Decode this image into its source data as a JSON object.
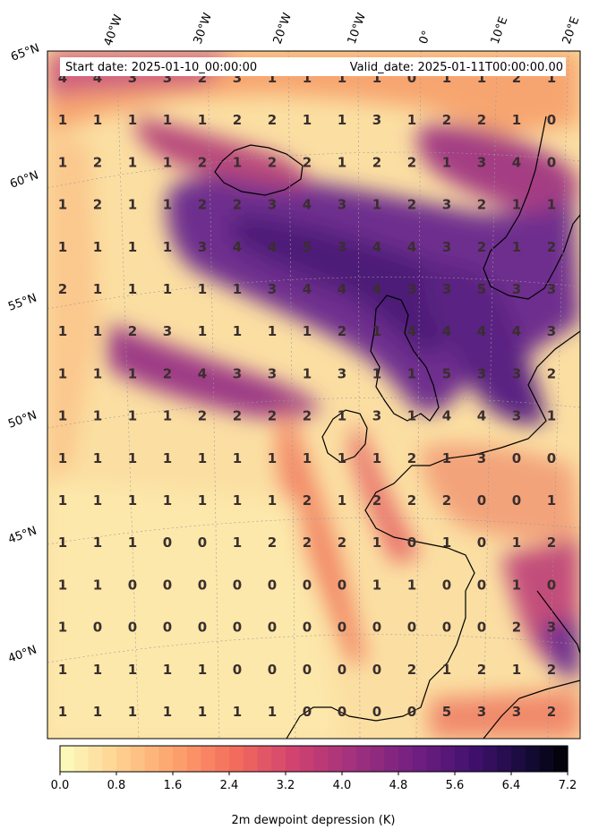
{
  "header": {
    "start_date": "Start date: 2025-01-10_00:00:00",
    "valid_date": "Valid_date: 2025-01-11T00:00:00.00"
  },
  "longitude_labels": [
    "40°W",
    "30°W",
    "20°W",
    "10°W",
    "0°",
    "10°E",
    "20°E"
  ],
  "latitude_labels": [
    "65°N",
    "60°N",
    "55°N",
    "50°N",
    "45°N",
    "40°N"
  ],
  "colorbar": {
    "label": "2m dewpoint depression (K)",
    "tick_labels": [
      "0.0",
      "0.8",
      "1.6",
      "2.4",
      "3.2",
      "4.0",
      "4.8",
      "5.6",
      "6.4",
      "7.2"
    ],
    "min": 0.0,
    "max": 7.2,
    "levels": 36,
    "colormap": "magma_r"
  },
  "grid_values": [
    [
      "4",
      "4",
      "3",
      "3",
      "2",
      "3",
      "1",
      "1",
      "1",
      "1",
      "0",
      "1",
      "1",
      "2",
      "1"
    ],
    [
      "1",
      "1",
      "1",
      "1",
      "1",
      "2",
      "2",
      "1",
      "1",
      "3",
      "1",
      "2",
      "2",
      "1",
      "0"
    ],
    [
      "1",
      "2",
      "1",
      "1",
      "2",
      "1",
      "2",
      "2",
      "1",
      "2",
      "2",
      "1",
      "3",
      "4",
      "0"
    ],
    [
      "1",
      "2",
      "1",
      "1",
      "2",
      "2",
      "3",
      "4",
      "3",
      "1",
      "2",
      "3",
      "2",
      "1",
      "1"
    ],
    [
      "1",
      "1",
      "1",
      "1",
      "3",
      "4",
      "4",
      "5",
      "3",
      "4",
      "4",
      "3",
      "2",
      "1",
      "2"
    ],
    [
      "2",
      "1",
      "1",
      "1",
      "1",
      "1",
      "3",
      "4",
      "4",
      "4",
      "3",
      "3",
      "5",
      "3",
      "3"
    ],
    [
      "1",
      "1",
      "2",
      "3",
      "1",
      "1",
      "1",
      "1",
      "2",
      "1",
      "4",
      "4",
      "4",
      "4",
      "3"
    ],
    [
      "1",
      "1",
      "1",
      "2",
      "4",
      "3",
      "3",
      "1",
      "3",
      "1",
      "1",
      "5",
      "3",
      "3",
      "2"
    ],
    [
      "1",
      "1",
      "1",
      "1",
      "2",
      "2",
      "2",
      "2",
      "1",
      "3",
      "1",
      "4",
      "4",
      "3",
      "1"
    ],
    [
      "1",
      "1",
      "1",
      "1",
      "1",
      "1",
      "1",
      "1",
      "1",
      "1",
      "2",
      "1",
      "3",
      "0",
      "0"
    ],
    [
      "1",
      "1",
      "1",
      "1",
      "1",
      "1",
      "1",
      "2",
      "1",
      "2",
      "2",
      "2",
      "0",
      "0",
      "1"
    ],
    [
      "1",
      "1",
      "1",
      "0",
      "0",
      "1",
      "2",
      "2",
      "2",
      "1",
      "0",
      "1",
      "0",
      "1",
      "2"
    ],
    [
      "1",
      "1",
      "0",
      "0",
      "0",
      "0",
      "0",
      "0",
      "0",
      "1",
      "1",
      "0",
      "0",
      "1",
      "0"
    ],
    [
      "1",
      "0",
      "0",
      "0",
      "0",
      "0",
      "0",
      "0",
      "0",
      "0",
      "0",
      "0",
      "0",
      "2",
      "3"
    ],
    [
      "1",
      "1",
      "1",
      "1",
      "1",
      "0",
      "0",
      "0",
      "0",
      "0",
      "2",
      "1",
      "2",
      "1",
      "2"
    ],
    [
      "1",
      "1",
      "1",
      "1",
      "1",
      "1",
      "1",
      "0",
      "0",
      "0",
      "0",
      "5",
      "3",
      "3",
      "2"
    ]
  ]
}
